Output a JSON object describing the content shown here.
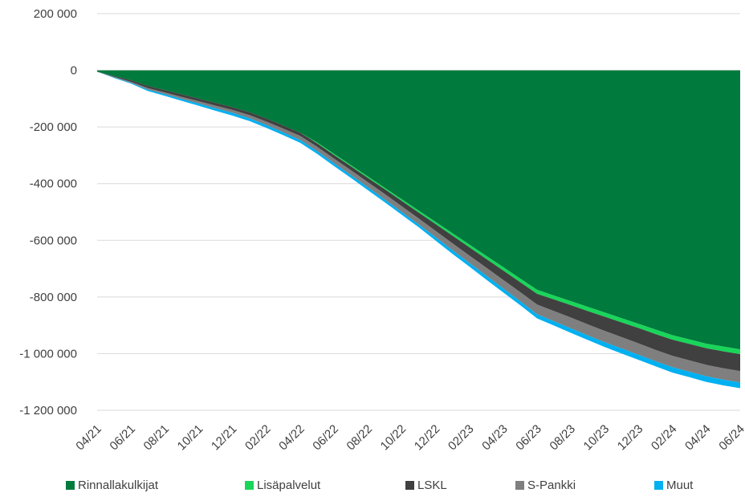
{
  "chart_data": {
    "type": "area",
    "stacked": true,
    "categories": [
      "04/21",
      "05/21",
      "06/21",
      "07/21",
      "08/21",
      "09/21",
      "10/21",
      "11/21",
      "12/21",
      "01/22",
      "02/22",
      "03/22",
      "04/22",
      "05/22",
      "06/22",
      "07/22",
      "08/22",
      "09/22",
      "10/22",
      "11/22",
      "12/22",
      "01/23",
      "02/23",
      "03/23",
      "04/23",
      "05/23",
      "06/23",
      "07/23",
      "08/23",
      "09/23",
      "10/23",
      "11/23",
      "12/23",
      "01/24",
      "02/24",
      "03/24",
      "04/24",
      "05/24",
      "06/24"
    ],
    "tick_labels": [
      "04/21",
      "06/21",
      "08/21",
      "10/21",
      "12/21",
      "02/22",
      "04/22",
      "06/22",
      "08/22",
      "10/22",
      "12/22",
      "02/23",
      "04/23",
      "06/23",
      "08/23",
      "10/23",
      "12/23",
      "02/24",
      "04/24",
      "06/24"
    ],
    "series": [
      {
        "name": "Rinnallakulkijat",
        "color": "#007a3d",
        "values": [
          -5000,
          -20000,
          -35000,
          -55000,
          -70000,
          -85000,
          -100000,
          -115000,
          -130000,
          -148000,
          -170000,
          -195000,
          -220000,
          -255000,
          -295000,
          -335000,
          -375000,
          -415000,
          -455000,
          -495000,
          -535000,
          -575000,
          -615000,
          -655000,
          -695000,
          -735000,
          -775000,
          -795000,
          -815000,
          -835000,
          -855000,
          -875000,
          -895000,
          -915000,
          -935000,
          -950000,
          -965000,
          -975000,
          -985000
        ]
      },
      {
        "name": "Lisäpalvelut",
        "color": "#19d55a",
        "values": [
          0,
          0,
          0,
          0,
          0,
          0,
          0,
          0,
          0,
          0,
          0,
          0,
          0,
          -3000,
          -4000,
          -4000,
          -5000,
          -5000,
          -6000,
          -7000,
          -8000,
          -9000,
          -10000,
          -11000,
          -12000,
          -13000,
          -14000,
          -14000,
          -14000,
          -15000,
          -15000,
          -15000,
          -15000,
          -16000,
          -16000,
          -16000,
          -16000,
          -17000,
          -17000
        ]
      },
      {
        "name": "LSKL",
        "color": "#404040",
        "values": [
          0,
          -3000,
          -6000,
          -8000,
          -8000,
          -9000,
          -9000,
          -10000,
          -10000,
          -10000,
          -11000,
          -11000,
          -12000,
          -12000,
          -13000,
          -14000,
          -15000,
          -17000,
          -19000,
          -21000,
          -24000,
          -27000,
          -29000,
          -31000,
          -33000,
          -35000,
          -38000,
          -41000,
          -44000,
          -47000,
          -50000,
          -52000,
          -54000,
          -56000,
          -57000,
          -58000,
          -59000,
          -60000,
          -60000
        ]
      },
      {
        "name": "S-Pankki",
        "color": "#7f7f7f",
        "values": [
          0,
          -2000,
          -3000,
          -5000,
          -6000,
          -7000,
          -8000,
          -9000,
          -10000,
          -11000,
          -12000,
          -13000,
          -14000,
          -15000,
          -16000,
          -17000,
          -18000,
          -19000,
          -20000,
          -21000,
          -22000,
          -24000,
          -26000,
          -28000,
          -30000,
          -32000,
          -34000,
          -36000,
          -38000,
          -39000,
          -40000,
          -40000,
          -40000,
          -40000,
          -40000,
          -40000,
          -40000,
          -40000,
          -40000
        ]
      },
      {
        "name": "Muut",
        "color": "#00b0f0",
        "values": [
          0,
          -2000,
          -3000,
          -5000,
          -6000,
          -7000,
          -8000,
          -9000,
          -10000,
          -10000,
          -10000,
          -10000,
          -10000,
          -10000,
          -10000,
          -10000,
          -10000,
          -10000,
          -10000,
          -10000,
          -12000,
          -13000,
          -13000,
          -14000,
          -14000,
          -14000,
          -15000,
          -15000,
          -16000,
          -16000,
          -17000,
          -18000,
          -18000,
          -18000,
          -19000,
          -19000,
          -20000,
          -20000,
          -20000
        ]
      }
    ],
    "yticks": [
      200000,
      0,
      -200000,
      -400000,
      -600000,
      -800000,
      -1000000,
      -1200000
    ],
    "ytick_labels": [
      "200 000",
      "0",
      "-200 000",
      "-400 000",
      "-600 000",
      "-800 000",
      "-1 000 000",
      "-1 200 000"
    ],
    "ylim": [
      -1200000,
      200000
    ],
    "grid": true,
    "legend_position": "bottom"
  }
}
